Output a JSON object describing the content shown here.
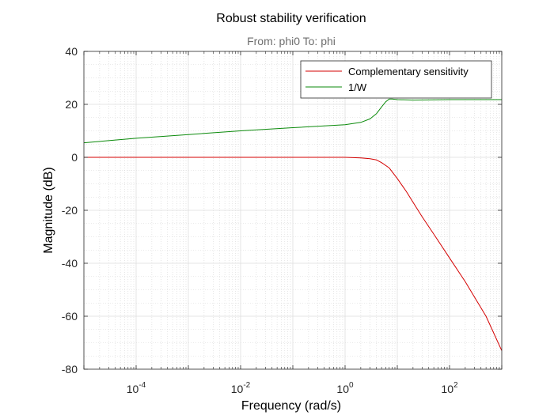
{
  "chart_data": {
    "type": "line",
    "title": "Robust stability verification",
    "subtitle": "From: phi0  To: phi",
    "xlabel": "Frequency  (rad/s)",
    "ylabel": "Magnitude (dB)",
    "xscale": "log",
    "xlim": [
      1e-05,
      1000
    ],
    "ylim": [
      -80,
      40
    ],
    "x_ticks": [
      {
        "base": "10",
        "exp": "-4",
        "value": 0.0001
      },
      {
        "base": "10",
        "exp": "-2",
        "value": 0.01
      },
      {
        "base": "10",
        "exp": "0",
        "value": 1
      },
      {
        "base": "10",
        "exp": "2",
        "value": 100
      }
    ],
    "y_ticks": [
      40,
      20,
      0,
      -20,
      -40,
      -60,
      -80
    ],
    "grid": true,
    "minor_grid": true,
    "legend_position": "top-right",
    "series": [
      {
        "name": "Complementary sensitivity",
        "color": "#d40000",
        "x": [
          1e-05,
          0.0001,
          0.01,
          1,
          2,
          3,
          4,
          5,
          7,
          10,
          15,
          20,
          30,
          50,
          100,
          200,
          500,
          1000
        ],
        "y": [
          0,
          0,
          0,
          0,
          -0.2,
          -0.5,
          -1,
          -2,
          -4,
          -8,
          -13,
          -17,
          -22.5,
          -29,
          -38,
          -47,
          -60,
          -73
        ]
      },
      {
        "name": "1/W",
        "color": "#0b8a0b",
        "x": [
          1e-05,
          0.0001,
          0.001,
          0.01,
          0.1,
          1,
          2,
          3,
          4,
          5,
          6,
          7,
          8,
          10,
          20,
          100,
          1000
        ],
        "y": [
          5.5,
          7.2,
          8.6,
          10,
          11.2,
          12.3,
          13.2,
          14.5,
          16.5,
          19,
          21,
          22,
          22,
          21.8,
          21.6,
          21.8,
          21.8
        ]
      }
    ]
  }
}
